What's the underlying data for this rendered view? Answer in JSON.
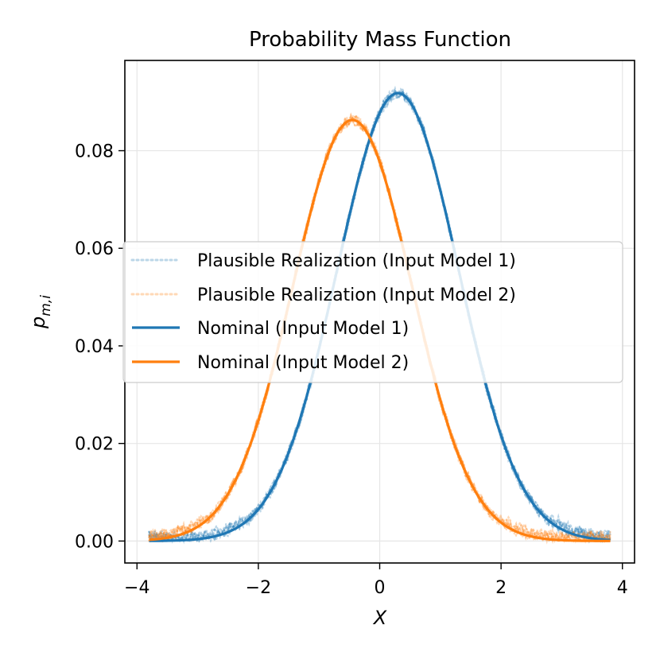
{
  "chart_data": {
    "type": "line",
    "title": "Probability Mass Function",
    "xlabel": "X",
    "ylabel_main": "p",
    "ylabel_sub": "m,i",
    "xlim": [
      -4.2,
      4.2
    ],
    "ylim": [
      -0.0045,
      0.0985
    ],
    "xticks": [
      -4,
      -2,
      0,
      2,
      4
    ],
    "xtick_labels": [
      "−4",
      "−2",
      "0",
      "2",
      "4"
    ],
    "yticks": [
      0.0,
      0.02,
      0.04,
      0.06,
      0.08
    ],
    "ytick_labels": [
      "0.00",
      "0.02",
      "0.04",
      "0.06",
      "0.08"
    ],
    "grid": true,
    "legend_position": "center-left",
    "x_range": [
      -3.8,
      3.8
    ],
    "series": [
      {
        "name": "Plausible Realization (Input Model 1)",
        "style": "dotted",
        "color": "#1f77b4",
        "model": 1,
        "mean": 0.3,
        "sd": 1.0,
        "peak": 0.0918
      },
      {
        "name": "Plausible Realization (Input Model 2)",
        "style": "dotted",
        "color": "#ff7f0e",
        "model": 2,
        "mean": -0.45,
        "sd": 0.98,
        "peak": 0.0863
      },
      {
        "name": "Nominal (Input Model 1)",
        "style": "solid",
        "color": "#1f77b4",
        "model": 1,
        "mean": 0.3,
        "sd": 1.0,
        "peak": 0.0918
      },
      {
        "name": "Nominal (Input Model 2)",
        "style": "solid",
        "color": "#ff7f0e",
        "model": 2,
        "mean": -0.45,
        "sd": 0.98,
        "peak": 0.0863
      }
    ]
  }
}
